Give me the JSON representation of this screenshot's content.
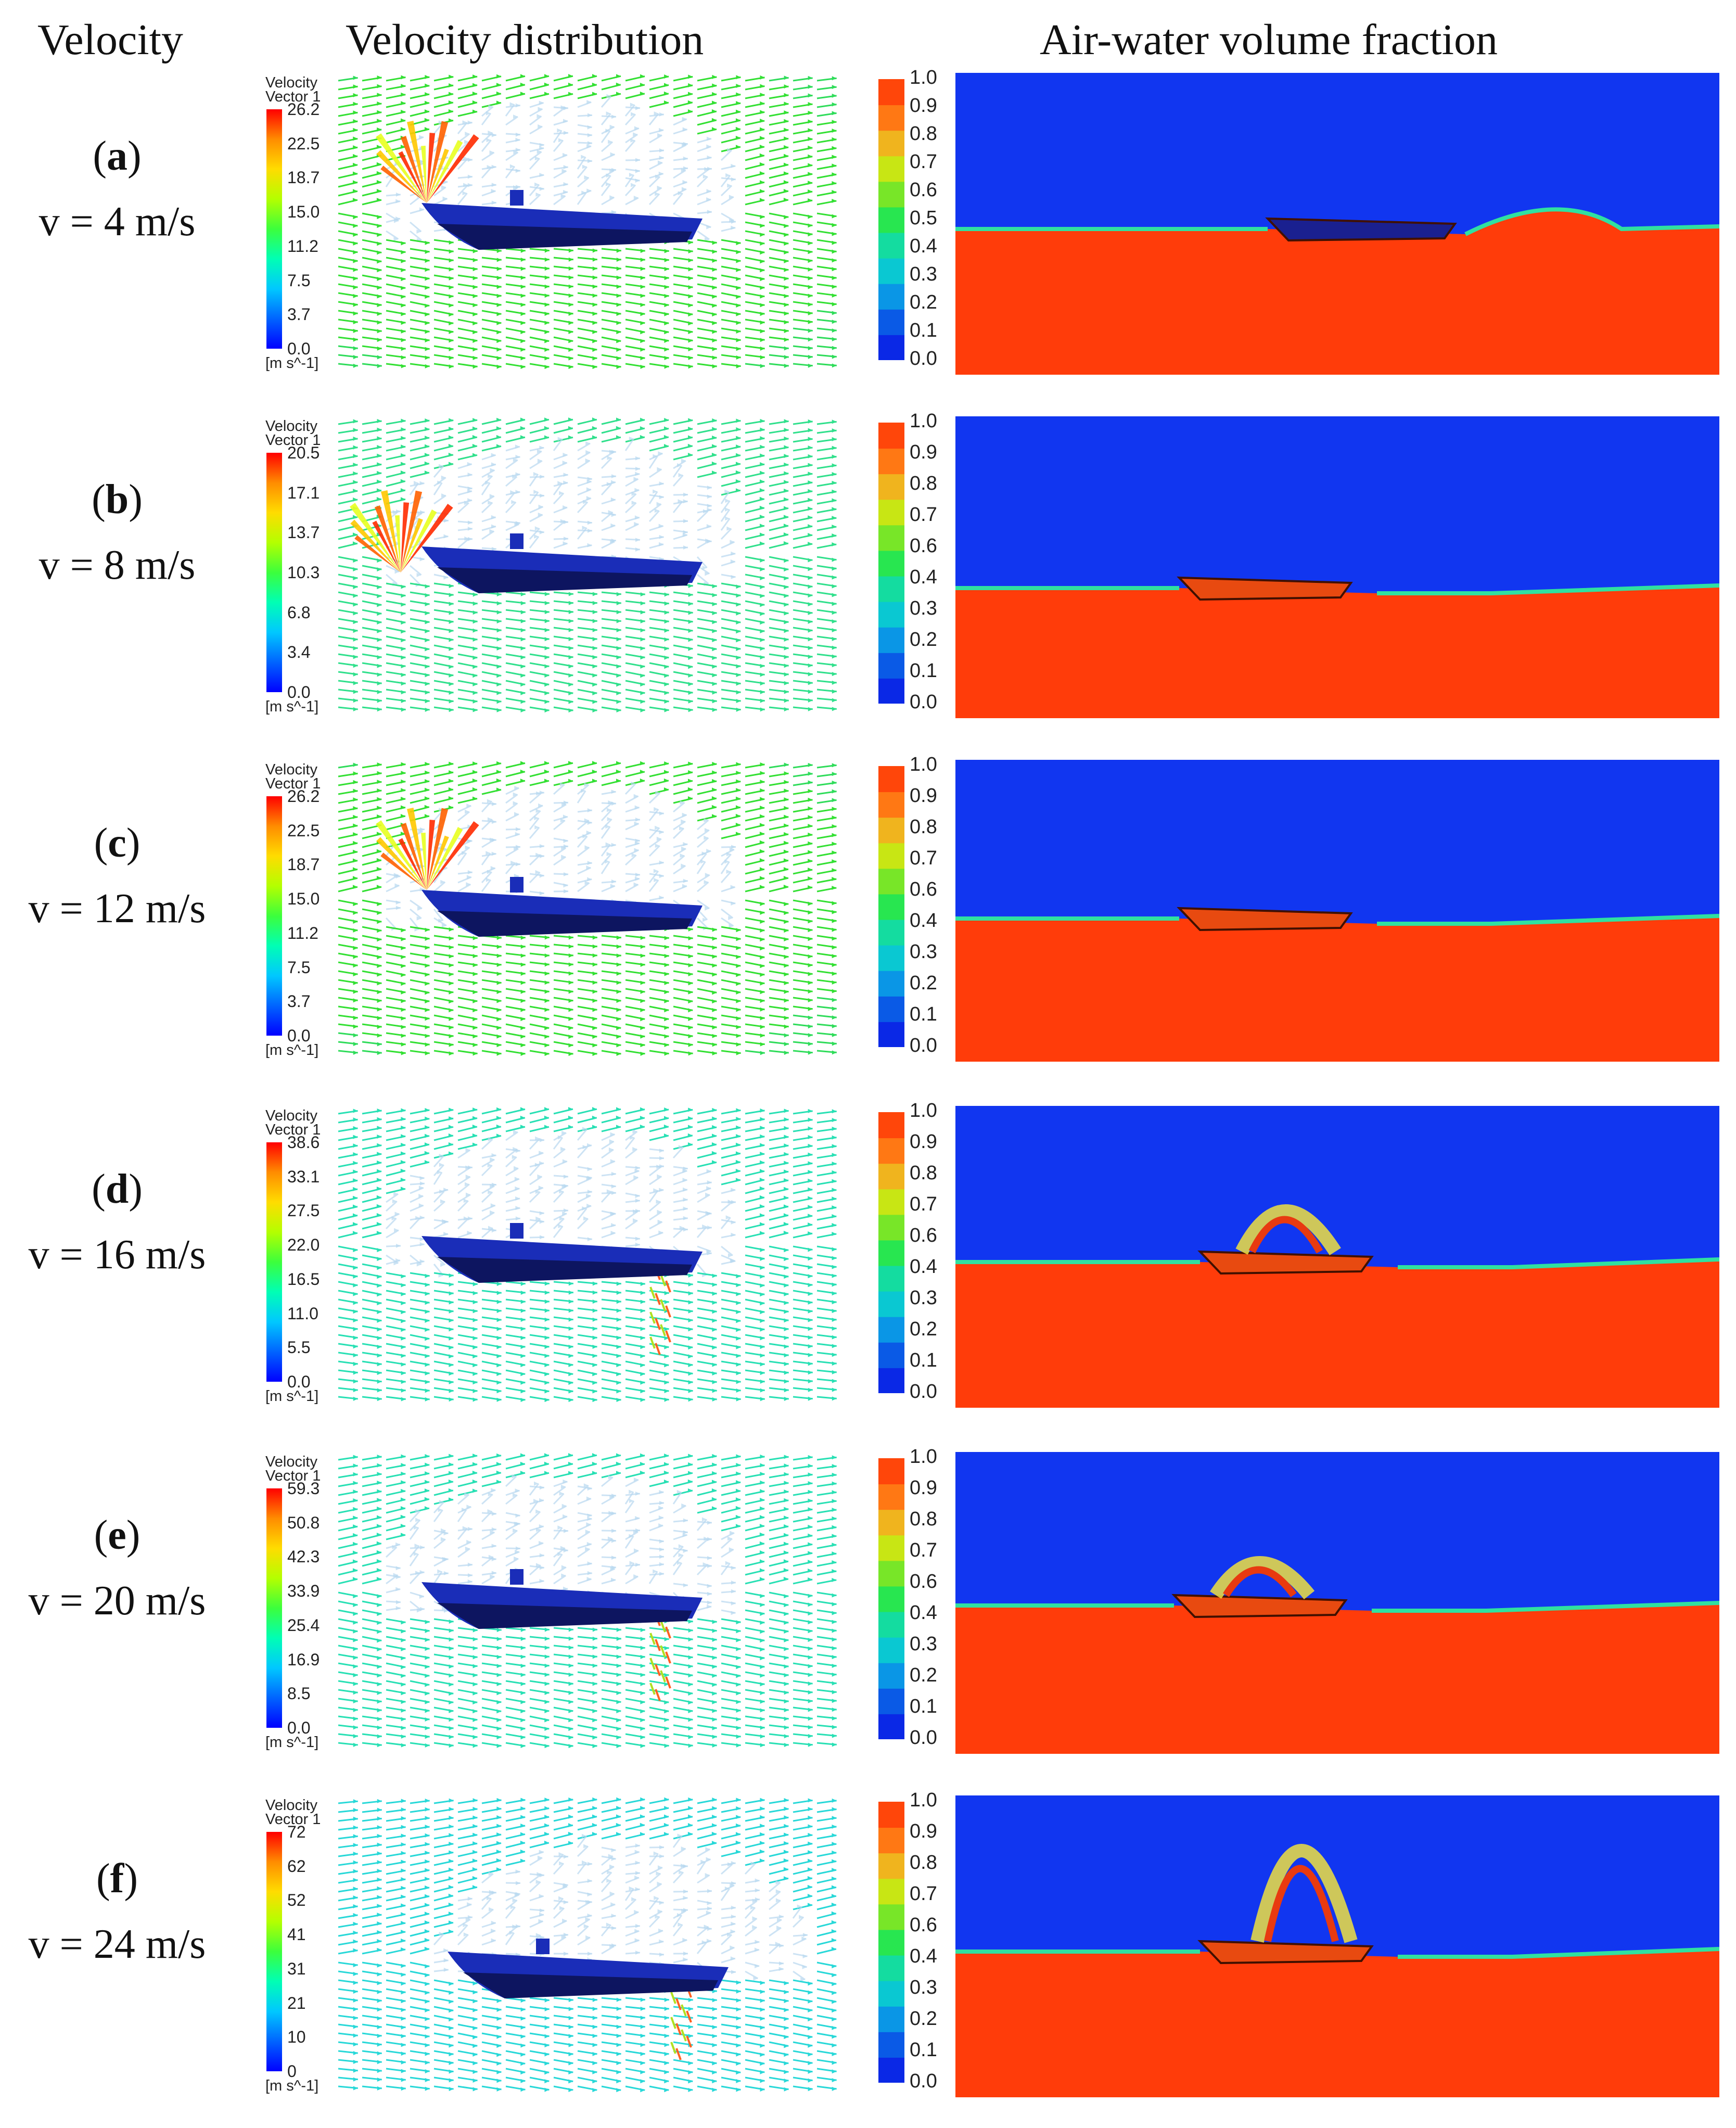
{
  "headers": {
    "velocity": "Velocity",
    "distribution": "Velocity distribution",
    "fraction": "Air-water volume fraction"
  },
  "legend": {
    "title_line1": "Velocity",
    "title_line2": "Vector 1",
    "unit": "[m s^-1]"
  },
  "fraction_ticks": [
    "1.0",
    "0.9",
    "0.8",
    "0.7",
    "0.6",
    "0.5",
    "0.4",
    "0.3",
    "0.2",
    "0.1",
    "0.0"
  ],
  "rows": [
    {
      "id": "a",
      "velocity_text": "v = 4 m/s",
      "ticks": [
        "26.2",
        "22.5",
        "18.7",
        "15.0",
        "11.2",
        "7.5",
        "3.7",
        "0.0"
      ],
      "fraction_ticks": [
        "1.0",
        "0.9",
        "0.8",
        "0.7",
        "0.6",
        "0.5",
        "0.4",
        "0.3",
        "0.2",
        "0.1",
        "0.0"
      ]
    },
    {
      "id": "b",
      "velocity_text": "v = 8 m/s",
      "ticks": [
        "20.5",
        "17.1",
        "13.7",
        "10.3",
        "6.8",
        "3.4",
        "0.0"
      ],
      "fraction_ticks": [
        "1.0",
        "0.9",
        "0.8",
        "0.7",
        "0.6",
        "0.4",
        "0.3",
        "0.2",
        "0.1",
        "0.0"
      ]
    },
    {
      "id": "c",
      "velocity_text": "v = 12 m/s",
      "ticks": [
        "26.2",
        "22.5",
        "18.7",
        "15.0",
        "11.2",
        "7.5",
        "3.7",
        "0.0"
      ],
      "fraction_ticks": [
        "1.0",
        "0.9",
        "0.8",
        "0.7",
        "0.6",
        "0.4",
        "0.3",
        "0.2",
        "0.1",
        "0.0"
      ]
    },
    {
      "id": "d",
      "velocity_text": "v = 16 m/s",
      "ticks": [
        "38.6",
        "33.1",
        "27.5",
        "22.0",
        "16.5",
        "11.0",
        "5.5",
        "0.0"
      ],
      "fraction_ticks": [
        "1.0",
        "0.9",
        "0.8",
        "0.7",
        "0.6",
        "0.4",
        "0.3",
        "0.2",
        "0.1",
        "0.0"
      ]
    },
    {
      "id": "e",
      "velocity_text": "v = 20 m/s",
      "ticks": [
        "59.3",
        "50.8",
        "42.3",
        "33.9",
        "25.4",
        "16.9",
        "8.5",
        "0.0"
      ],
      "fraction_ticks": [
        "1.0",
        "0.9",
        "0.8",
        "0.7",
        "0.6",
        "0.4",
        "0.3",
        "0.2",
        "0.1",
        "0.0"
      ]
    },
    {
      "id": "f",
      "velocity_text": "v = 24 m/s",
      "ticks": [
        "72",
        "62",
        "52",
        "41",
        "31",
        "21",
        "10",
        "0"
      ],
      "fraction_ticks": [
        "1.0",
        "0.9",
        "0.8",
        "0.7",
        "0.6",
        "0.4",
        "0.3",
        "0.2",
        "0.1",
        "0.0"
      ]
    }
  ],
  "colors": {
    "air": "#1136f0",
    "water": "#ff3c0a",
    "boat": "#1a2db8",
    "boat_dark": "#0d1560"
  }
}
